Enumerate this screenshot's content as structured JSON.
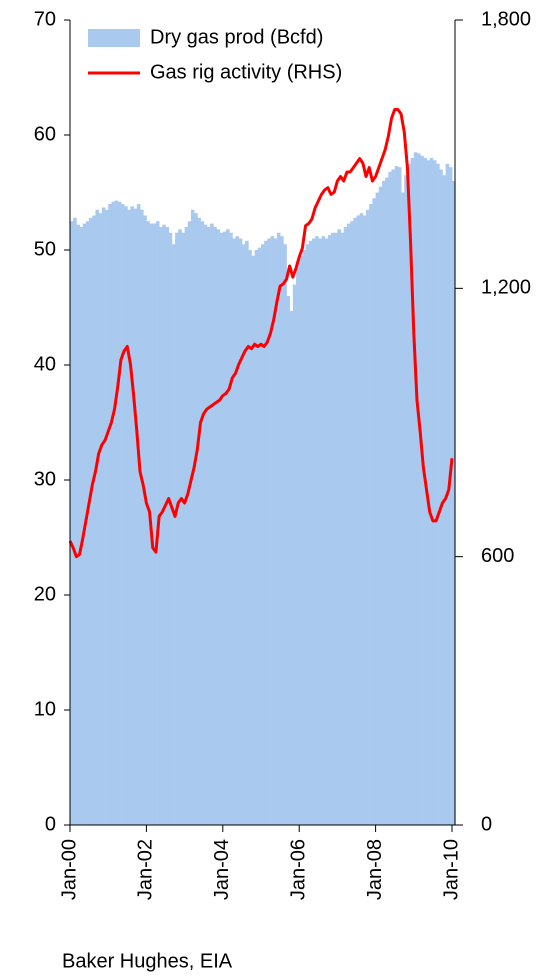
{
  "chart_data": {
    "type": "bar-line",
    "source": "Baker Hughes, EIA",
    "categories": [
      "Jan-00",
      null,
      null,
      null,
      null,
      null,
      null,
      null,
      null,
      null,
      null,
      null,
      null,
      null,
      null,
      null,
      null,
      null,
      null,
      null,
      null,
      null,
      null,
      null,
      "Jan-02",
      null,
      null,
      null,
      null,
      null,
      null,
      null,
      null,
      null,
      null,
      null,
      null,
      null,
      null,
      null,
      null,
      null,
      null,
      null,
      null,
      null,
      null,
      null,
      "Jan-04",
      null,
      null,
      null,
      null,
      null,
      null,
      null,
      null,
      null,
      null,
      null,
      null,
      null,
      null,
      null,
      null,
      null,
      null,
      null,
      null,
      null,
      null,
      null,
      "Jan-06",
      null,
      null,
      null,
      null,
      null,
      null,
      null,
      null,
      null,
      null,
      null,
      null,
      null,
      null,
      null,
      null,
      null,
      null,
      null,
      null,
      null,
      null,
      null,
      "Jan-08",
      null,
      null,
      null,
      null,
      null,
      null,
      null,
      null,
      null,
      null,
      null,
      null,
      null,
      null,
      null,
      null,
      null,
      null,
      null,
      null,
      null,
      null,
      null,
      "Jan-10"
    ],
    "series": [
      {
        "name": "Dry gas prod (Bcfd)",
        "type": "bar",
        "color": "#a9c9ee",
        "values": [
          52.5,
          52.8,
          52.2,
          52.0,
          52.3,
          52.5,
          52.8,
          53.0,
          53.5,
          53.2,
          53.7,
          53.5,
          54.0,
          54.2,
          54.3,
          54.2,
          54.0,
          53.8,
          53.5,
          53.8,
          53.6,
          54.0,
          53.5,
          53.0,
          52.5,
          52.3,
          52.3,
          52.5,
          52.0,
          52.2,
          52.0,
          51.5,
          50.5,
          51.5,
          51.8,
          51.5,
          52.0,
          52.5,
          53.5,
          53.2,
          52.8,
          52.5,
          52.2,
          52.0,
          52.3,
          52.0,
          51.8,
          51.5,
          51.6,
          51.8,
          51.5,
          51.0,
          51.2,
          51.0,
          50.5,
          50.8,
          50.0,
          49.5,
          50.0,
          50.2,
          50.5,
          50.8,
          51.0,
          51.2,
          51.0,
          51.5,
          51.2,
          50.5,
          46.0,
          44.7,
          47.0,
          49.0,
          49.5,
          50.0,
          50.5,
          50.8,
          51.0,
          51.2,
          51.0,
          51.2,
          51.0,
          51.3,
          51.5,
          51.5,
          51.8,
          51.5,
          52.0,
          52.3,
          52.5,
          52.8,
          53.0,
          53.2,
          53.0,
          53.5,
          54.0,
          54.5,
          55.0,
          55.5,
          56.0,
          56.3,
          56.8,
          57.0,
          57.3,
          57.2,
          55.0,
          56.5,
          57.5,
          58.0,
          58.5,
          58.4,
          58.2,
          58.0,
          57.8,
          58.0,
          57.8,
          57.5,
          57.0,
          56.5,
          57.5,
          57.2,
          56.0
        ]
      },
      {
        "name": "Gas rig activity (RHS)",
        "type": "line",
        "color": "#ff0000",
        "axis": "y2",
        "values": [
          635,
          620,
          600,
          605,
          640,
          680,
          720,
          760,
          790,
          830,
          850,
          860,
          880,
          900,
          930,
          980,
          1040,
          1060,
          1070,
          1030,
          960,
          880,
          790,
          760,
          720,
          700,
          620,
          610,
          690,
          700,
          715,
          730,
          710,
          690,
          720,
          730,
          720,
          740,
          770,
          800,
          840,
          900,
          920,
          930,
          935,
          940,
          945,
          950,
          960,
          965,
          975,
          1000,
          1010,
          1030,
          1045,
          1060,
          1070,
          1065,
          1075,
          1070,
          1075,
          1070,
          1080,
          1100,
          1130,
          1170,
          1205,
          1210,
          1220,
          1250,
          1225,
          1245,
          1270,
          1290,
          1340,
          1345,
          1355,
          1380,
          1395,
          1410,
          1420,
          1425,
          1410,
          1415,
          1440,
          1450,
          1440,
          1460,
          1460,
          1470,
          1480,
          1490,
          1480,
          1450,
          1470,
          1440,
          1450,
          1470,
          1490,
          1510,
          1540,
          1580,
          1600,
          1600,
          1590,
          1550,
          1470,
          1300,
          1100,
          950,
          880,
          800,
          750,
          700,
          680,
          680,
          700,
          720,
          730,
          750,
          820
        ]
      }
    ],
    "ylim": [
      0,
      70
    ],
    "yticks": [
      0,
      10,
      20,
      30,
      40,
      50,
      60,
      70
    ],
    "y2lim": [
      0,
      1800
    ],
    "y2ticks": [
      0,
      600,
      {
        "value": 1200,
        "label": "1,200"
      },
      {
        "value": 1800,
        "label": "1,800"
      }
    ],
    "y2tick_color": "#ff0000",
    "legend": "top"
  }
}
